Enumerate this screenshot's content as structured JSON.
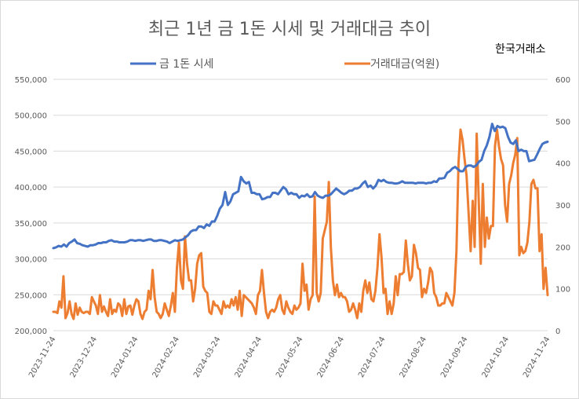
{
  "chart_data": {
    "type": "line",
    "title": "최근 1년 금 1돈 시세 및 거래대금 추이",
    "source": "한국거래소",
    "x_labels": [
      "2023-11-24",
      "2023-12-24",
      "2024-01-24",
      "2024-02-24",
      "2024-03-24",
      "2024-04-24",
      "2024-05-24",
      "2024-06-24",
      "2024-07-24",
      "2024-08-24",
      "2024-09-24",
      "2024-10-24",
      "2024-11-24"
    ],
    "y_left": {
      "min": 200000,
      "max": 550000,
      "step": 50000,
      "ticks": [
        "200,000",
        "250,000",
        "300,000",
        "350,000",
        "400,000",
        "450,000",
        "500,000",
        "550,000"
      ]
    },
    "y_right": {
      "min": 0,
      "max": 600,
      "step": 100,
      "ticks": [
        "0",
        "100",
        "200",
        "300",
        "400",
        "500",
        "600"
      ]
    },
    "series": [
      {
        "name": "금 1돈 시세",
        "axis": "left",
        "color": "#4472c4",
        "values": [
          315000,
          316000,
          318000,
          317000,
          320000,
          317000,
          322000,
          324000,
          327000,
          322000,
          321000,
          319000,
          318000,
          317000,
          319000,
          319000,
          320000,
          322000,
          322000,
          323000,
          323000,
          325000,
          326000,
          324000,
          324000,
          323000,
          323000,
          323000,
          324000,
          326000,
          326000,
          325000,
          326000,
          326000,
          325000,
          326000,
          327000,
          327000,
          325000,
          325000,
          326000,
          326000,
          325000,
          324000,
          322000,
          324000,
          326000,
          325000,
          326000,
          327000,
          330000,
          333000,
          338000,
          340000,
          340000,
          345000,
          345000,
          343000,
          348000,
          346000,
          352000,
          352000,
          360000,
          370000,
          375000,
          393000,
          375000,
          380000,
          390000,
          392000,
          394000,
          414000,
          408000,
          405000,
          407000,
          392000,
          392000,
          390000,
          390000,
          383000,
          384000,
          386000,
          386000,
          392000,
          392000,
          390000,
          395000,
          400000,
          397000,
          390000,
          392000,
          390000,
          390000,
          385000,
          388000,
          387000,
          390000,
          386000,
          387000,
          393000,
          388000,
          386000,
          385000,
          388000,
          388000,
          390000,
          394000,
          398000,
          395000,
          392000,
          390000,
          392000,
          395000,
          395000,
          398000,
          398000,
          400000,
          405000,
          408000,
          400000,
          402000,
          398000,
          402000,
          410000,
          408000,
          410000,
          407000,
          406000,
          406000,
          405000,
          405000,
          406000,
          408000,
          406000,
          406000,
          406000,
          406000,
          405000,
          406000,
          406000,
          406000,
          405000,
          406000,
          406000,
          408000,
          407000,
          412000,
          412000,
          413000,
          420000,
          422000,
          426000,
          428000,
          425000,
          422000,
          422000,
          428000,
          430000,
          430000,
          428000,
          430000,
          435000,
          438000,
          450000,
          458000,
          470000,
          488000,
          478000,
          485000,
          483000,
          484000,
          482000,
          470000,
          462000,
          460000,
          465000,
          450000,
          452000,
          450000,
          450000,
          436000,
          437000,
          438000,
          445000,
          453000,
          460000,
          462000,
          463000
        ]
      },
      {
        "name": "거래대금(억원)",
        "axis": "right",
        "color": "#ed7d31",
        "values": [
          45,
          45,
          42,
          70,
          55,
          130,
          30,
          42,
          70,
          40,
          28,
          65,
          38,
          55,
          45,
          42,
          45,
          45,
          40,
          80,
          70,
          60,
          40,
          85,
          45,
          58,
          45,
          35,
          75,
          40,
          50,
          45,
          65,
          60,
          35,
          75,
          40,
          58,
          60,
          38,
          60,
          75,
          70,
          40,
          28,
          45,
          50,
          95,
          75,
          145,
          80,
          45,
          40,
          30,
          40,
          65,
          50,
          35,
          60,
          90,
          45,
          150,
          210,
          120,
          100,
          225,
          160,
          120,
          120,
          70,
          100,
          160,
          180,
          185,
          105,
          95,
          90,
          45,
          40,
          70,
          60,
          60,
          50,
          40,
          70,
          55,
          60,
          55,
          75,
          60,
          80,
          50,
          95,
          35,
          85,
          80,
          75,
          70,
          65,
          55,
          40,
          85,
          95,
          145,
          90,
          45,
          30,
          45,
          50,
          45,
          55,
          75,
          85,
          50,
          40,
          70,
          55,
          45,
          40,
          60,
          50,
          55,
          65,
          160,
          95,
          110,
          50,
          75,
          85,
          320,
          90,
          70,
          90,
          220,
          240,
          260,
          355,
          200,
          120,
          85,
          110,
          80,
          90,
          80,
          80,
          70,
          45,
          50,
          65,
          50,
          30,
          65,
          45,
          95,
          120,
          90,
          115,
          75,
          70,
          95,
          150,
          230,
          175,
          90,
          100,
          40,
          70,
          40,
          65,
          130,
          85,
          135,
          135,
          140,
          215,
          160,
          120,
          130,
          205,
          185,
          150,
          145,
          80,
          100,
          90,
          115,
          150,
          140,
          90,
          80,
          60,
          60,
          65,
          65,
          90,
          80,
          70,
          60,
          90,
          190,
          400,
          480,
          455,
          410,
          370,
          280,
          190,
          310,
          200,
          470,
          310,
          160,
          350,
          200,
          270,
          220,
          250,
          250,
          440,
          480,
          440,
          410,
          395,
          300,
          260,
          350,
          370,
          400,
          420,
          460,
          180,
          200,
          185,
          190,
          210,
          260,
          350,
          360,
          340,
          340,
          190,
          230,
          100,
          150,
          85
        ],
        "note": "approximate trace of daily trading value"
      }
    ],
    "legend_position": "top",
    "grid": true
  }
}
